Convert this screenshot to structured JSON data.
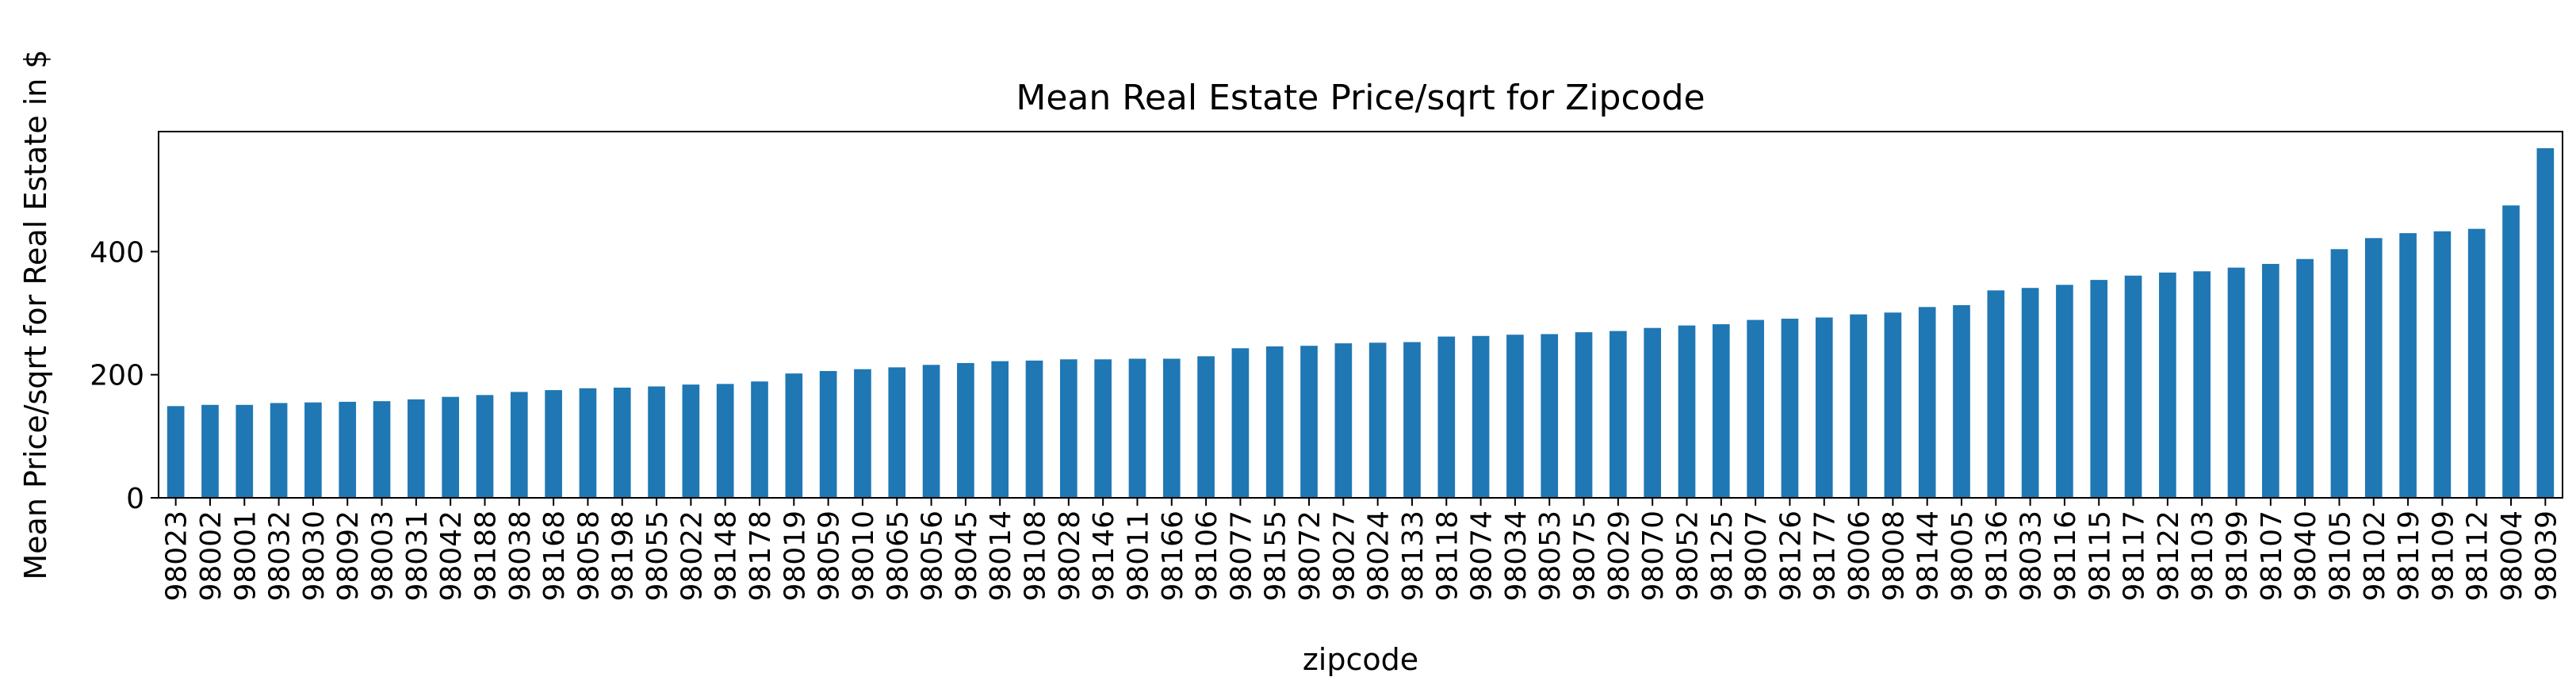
{
  "chart_data": {
    "type": "bar",
    "title": "Mean Real Estate Price/sqrt for Zipcode",
    "xlabel": "zipcode",
    "ylabel": "Mean Price/sqrt for Real Estate in $",
    "ylim": [
      0,
      595
    ],
    "yticks": [
      0,
      200,
      400
    ],
    "grid": false,
    "legend": "none",
    "bar_color": "#1f77b4",
    "categories": [
      "98023",
      "98002",
      "98001",
      "98032",
      "98030",
      "98092",
      "98003",
      "98031",
      "98042",
      "98188",
      "98038",
      "98168",
      "98058",
      "98198",
      "98055",
      "98022",
      "98148",
      "98178",
      "98019",
      "98059",
      "98010",
      "98065",
      "98056",
      "98045",
      "98014",
      "98108",
      "98028",
      "98146",
      "98011",
      "98166",
      "98106",
      "98077",
      "98155",
      "98072",
      "98027",
      "98024",
      "98133",
      "98118",
      "98074",
      "98034",
      "98053",
      "98075",
      "98029",
      "98070",
      "98052",
      "98125",
      "98007",
      "98126",
      "98177",
      "98006",
      "98008",
      "98144",
      "98005",
      "98136",
      "98033",
      "98116",
      "98115",
      "98117",
      "98122",
      "98103",
      "98199",
      "98107",
      "98040",
      "98105",
      "98102",
      "98119",
      "98109",
      "98112",
      "98004",
      "98039"
    ],
    "values": [
      149,
      151,
      151,
      154,
      155,
      156,
      157,
      160,
      164,
      167,
      172,
      175,
      178,
      179,
      181,
      184,
      185,
      189,
      202,
      206,
      209,
      212,
      216,
      219,
      222,
      223,
      225,
      225,
      226,
      226,
      230,
      243,
      246,
      247,
      251,
      252,
      253,
      262,
      263,
      265,
      266,
      269,
      271,
      276,
      280,
      282,
      289,
      291,
      293,
      298,
      301,
      310,
      313,
      337,
      341,
      346,
      354,
      361,
      366,
      368,
      374,
      380,
      388,
      404,
      422,
      430,
      433,
      437,
      475,
      568
    ]
  }
}
